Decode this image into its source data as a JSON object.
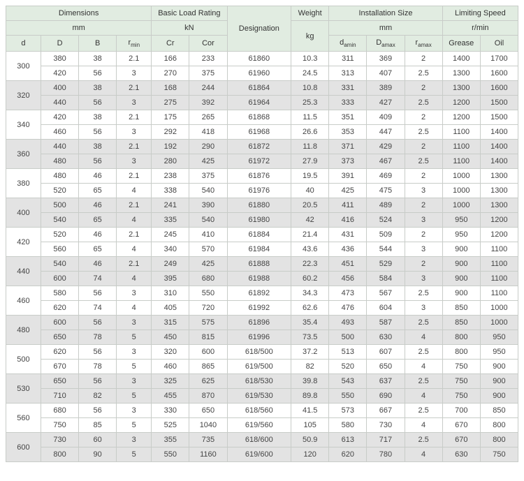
{
  "header": {
    "dimensions": "Dimensions",
    "mm": "mm",
    "basic_load": "Basic Load Rating",
    "kN": "kN",
    "designation": "Designation",
    "weight": "Weight",
    "kg": "kg",
    "install_size": "Installation Size",
    "limit_speed": "Limiting Speed",
    "rmin": "r/min",
    "d": "d",
    "D": "D",
    "B": "B",
    "r_min": "r",
    "r_min_sub": "min",
    "Cr": "Cr",
    "Cor": "Cor",
    "d_amin": "d",
    "d_amin_sub": "amin",
    "D_amax": "D",
    "D_amax_sub": "amax",
    "r_amax": "r",
    "r_amax_sub": "amax",
    "grease": "Grease",
    "oil": "Oil"
  },
  "groups": [
    {
      "d": "300",
      "shade": false,
      "rows": [
        [
          "380",
          "38",
          "2.1",
          "166",
          "233",
          "61860",
          "10.3",
          "311",
          "369",
          "2",
          "1400",
          "1700"
        ],
        [
          "420",
          "56",
          "3",
          "270",
          "375",
          "61960",
          "24.5",
          "313",
          "407",
          "2.5",
          "1300",
          "1600"
        ]
      ]
    },
    {
      "d": "320",
      "shade": true,
      "rows": [
        [
          "400",
          "38",
          "2.1",
          "168",
          "244",
          "61864",
          "10.8",
          "331",
          "389",
          "2",
          "1300",
          "1600"
        ],
        [
          "440",
          "56",
          "3",
          "275",
          "392",
          "61964",
          "25.3",
          "333",
          "427",
          "2.5",
          "1200",
          "1500"
        ]
      ]
    },
    {
      "d": "340",
      "shade": false,
      "rows": [
        [
          "420",
          "38",
          "2.1",
          "175",
          "265",
          "61868",
          "11.5",
          "351",
          "409",
          "2",
          "1200",
          "1500"
        ],
        [
          "460",
          "56",
          "3",
          "292",
          "418",
          "61968",
          "26.6",
          "353",
          "447",
          "2.5",
          "1100",
          "1400"
        ]
      ]
    },
    {
      "d": "360",
      "shade": true,
      "rows": [
        [
          "440",
          "38",
          "2.1",
          "192",
          "290",
          "61872",
          "11.8",
          "371",
          "429",
          "2",
          "1100",
          "1400"
        ],
        [
          "480",
          "56",
          "3",
          "280",
          "425",
          "61972",
          "27.9",
          "373",
          "467",
          "2.5",
          "1100",
          "1400"
        ]
      ]
    },
    {
      "d": "380",
      "shade": false,
      "rows": [
        [
          "480",
          "46",
          "2.1",
          "238",
          "375",
          "61876",
          "19.5",
          "391",
          "469",
          "2",
          "1000",
          "1300"
        ],
        [
          "520",
          "65",
          "4",
          "338",
          "540",
          "61976",
          "40",
          "425",
          "475",
          "3",
          "1000",
          "1300"
        ]
      ]
    },
    {
      "d": "400",
      "shade": true,
      "rows": [
        [
          "500",
          "46",
          "2.1",
          "241",
          "390",
          "61880",
          "20.5",
          "411",
          "489",
          "2",
          "1000",
          "1300"
        ],
        [
          "540",
          "65",
          "4",
          "335",
          "540",
          "61980",
          "42",
          "416",
          "524",
          "3",
          "950",
          "1200"
        ]
      ]
    },
    {
      "d": "420",
      "shade": false,
      "rows": [
        [
          "520",
          "46",
          "2.1",
          "245",
          "410",
          "61884",
          "21.4",
          "431",
          "509",
          "2",
          "950",
          "1200"
        ],
        [
          "560",
          "65",
          "4",
          "340",
          "570",
          "61984",
          "43.6",
          "436",
          "544",
          "3",
          "900",
          "1100"
        ]
      ]
    },
    {
      "d": "440",
      "shade": true,
      "rows": [
        [
          "540",
          "46",
          "2.1",
          "249",
          "425",
          "61888",
          "22.3",
          "451",
          "529",
          "2",
          "900",
          "1100"
        ],
        [
          "600",
          "74",
          "4",
          "395",
          "680",
          "61988",
          "60.2",
          "456",
          "584",
          "3",
          "900",
          "1100"
        ]
      ]
    },
    {
      "d": "460",
      "shade": false,
      "rows": [
        [
          "580",
          "56",
          "3",
          "310",
          "550",
          "61892",
          "34.3",
          "473",
          "567",
          "2.5",
          "900",
          "1100"
        ],
        [
          "620",
          "74",
          "4",
          "405",
          "720",
          "61992",
          "62.6",
          "476",
          "604",
          "3",
          "850",
          "1000"
        ]
      ]
    },
    {
      "d": "480",
      "shade": true,
      "rows": [
        [
          "600",
          "56",
          "3",
          "315",
          "575",
          "61896",
          "35.4",
          "493",
          "587",
          "2.5",
          "850",
          "1000"
        ],
        [
          "650",
          "78",
          "5",
          "450",
          "815",
          "61996",
          "73.5",
          "500",
          "630",
          "4",
          "800",
          "950"
        ]
      ]
    },
    {
      "d": "500",
      "shade": false,
      "rows": [
        [
          "620",
          "56",
          "3",
          "320",
          "600",
          "618/500",
          "37.2",
          "513",
          "607",
          "2.5",
          "800",
          "950"
        ],
        [
          "670",
          "78",
          "5",
          "460",
          "865",
          "619/500",
          "82",
          "520",
          "650",
          "4",
          "750",
          "900"
        ]
      ]
    },
    {
      "d": "530",
      "shade": true,
      "rows": [
        [
          "650",
          "56",
          "3",
          "325",
          "625",
          "618/530",
          "39.8",
          "543",
          "637",
          "2.5",
          "750",
          "900"
        ],
        [
          "710",
          "82",
          "5",
          "455",
          "870",
          "619/530",
          "89.8",
          "550",
          "690",
          "4",
          "750",
          "900"
        ]
      ]
    },
    {
      "d": "560",
      "shade": false,
      "rows": [
        [
          "680",
          "56",
          "3",
          "330",
          "650",
          "618/560",
          "41.5",
          "573",
          "667",
          "2.5",
          "700",
          "850"
        ],
        [
          "750",
          "85",
          "5",
          "525",
          "1040",
          "619/560",
          "105",
          "580",
          "730",
          "4",
          "670",
          "800"
        ]
      ]
    },
    {
      "d": "600",
      "shade": true,
      "rows": [
        [
          "730",
          "60",
          "3",
          "355",
          "735",
          "618/600",
          "50.9",
          "613",
          "717",
          "2.5",
          "670",
          "800"
        ],
        [
          "800",
          "90",
          "5",
          "550",
          "1160",
          "619/600",
          "120",
          "620",
          "780",
          "4",
          "630",
          "750"
        ]
      ]
    }
  ]
}
